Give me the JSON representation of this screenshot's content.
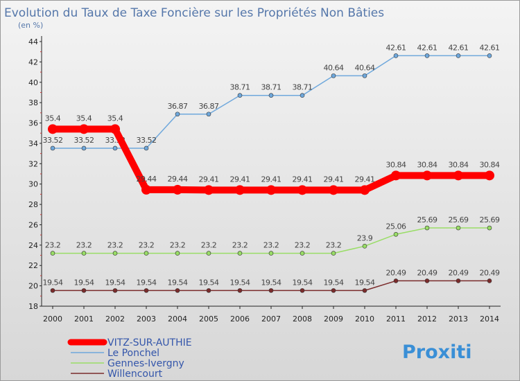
{
  "chart_data": {
    "type": "line",
    "title": "Evolution du Taux de Taxe Foncière sur les Propriétés Non Bâties",
    "subtitle": "(en %)",
    "xlabel": "",
    "ylabel": "",
    "categories": [
      "2000",
      "2001",
      "2002",
      "2003",
      "2004",
      "2005",
      "2006",
      "2007",
      "2008",
      "2009",
      "2010",
      "2011",
      "2012",
      "2013",
      "2014"
    ],
    "ylim": [
      18,
      44
    ],
    "yticks": [
      "18",
      "20",
      "22",
      "24",
      "26",
      "28",
      "30",
      "32",
      "34",
      "36",
      "38",
      "40",
      "42",
      "44"
    ],
    "legend_position": "bottom-left",
    "grid": false,
    "series": [
      {
        "name": "VITZ-SUR-AUTHIE",
        "color": "#ff0000",
        "values": [
          35.4,
          35.4,
          35.4,
          29.44,
          29.44,
          29.41,
          29.41,
          29.41,
          29.41,
          29.41,
          29.41,
          30.84,
          30.84,
          30.84,
          30.84
        ],
        "labels": [
          "35.4",
          "35.4",
          "35.4",
          "29.44",
          "29.44",
          "29.41",
          "29.41",
          "29.41",
          "29.41",
          "29.41",
          "29.41",
          "30.84",
          "30.84",
          "30.84",
          "30.84"
        ]
      },
      {
        "name": "Le Ponchel",
        "color": "#6fa8dc",
        "values": [
          33.52,
          33.52,
          33.52,
          33.52,
          36.87,
          36.87,
          38.71,
          38.71,
          38.71,
          40.64,
          40.64,
          42.61,
          42.61,
          42.61,
          42.61
        ],
        "labels": [
          "33.52",
          "33.52",
          "33.52",
          "33.52",
          "36.87",
          "36.87",
          "38.71",
          "38.71",
          "38.71",
          "40.64",
          "40.64",
          "42.61",
          "42.61",
          "42.61",
          "42.61"
        ]
      },
      {
        "name": "Gennes-Ivergny",
        "color": "#99dd66",
        "values": [
          23.2,
          23.2,
          23.2,
          23.2,
          23.2,
          23.2,
          23.2,
          23.2,
          23.2,
          23.2,
          23.9,
          25.06,
          25.69,
          25.69,
          25.69
        ],
        "labels": [
          "23.2",
          "23.2",
          "23.2",
          "23.2",
          "23.2",
          "23.2",
          "23.2",
          "23.2",
          "23.2",
          "23.2",
          "23.9",
          "25.06",
          "25.69",
          "25.69",
          "25.69"
        ]
      },
      {
        "name": "Willencourt",
        "color": "#7a2b2b",
        "values": [
          19.54,
          19.54,
          19.54,
          19.54,
          19.54,
          19.54,
          19.54,
          19.54,
          19.54,
          19.54,
          19.54,
          20.49,
          20.49,
          20.49,
          20.49
        ],
        "labels": [
          "19.54",
          "19.54",
          "19.54",
          "19.54",
          "19.54",
          "19.54",
          "19.54",
          "19.54",
          "19.54",
          "19.54",
          "19.54",
          "20.49",
          "20.49",
          "20.49",
          "20.49"
        ]
      }
    ]
  },
  "logo": {
    "text": "Proxiti"
  }
}
